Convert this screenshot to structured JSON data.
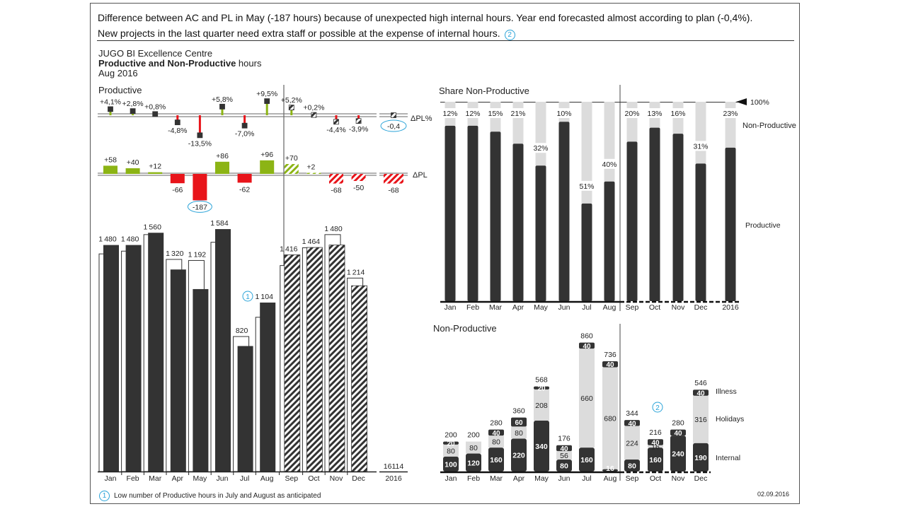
{
  "header": {
    "comment_line1": "Difference between AC and PL in May (-187 hours) because of unexpected high internal hours. Year end forecasted almost according to plan (-0,4%).",
    "comment_line2": "New projects in the last quarter need extra staff or possible at the expense of internal hours.",
    "comment_ref": "2",
    "org": "JUGO BI Excellence Centre",
    "title_bold": "Productive and Non-Productive",
    "title_rest": " hours",
    "period": "Aug 2016"
  },
  "footer": {
    "note_ref": "1",
    "note_text": "Low number of Productive hours in July and August as anticipated",
    "date": "02.09.2016"
  },
  "colors": {
    "actual": "#333333",
    "plan_outline": "#333333",
    "positive": "#8cb415",
    "negative": "#e8141a",
    "light": "#dcdcdc",
    "accent": "#2aa3d8"
  },
  "chart_data": [
    {
      "type": "bar",
      "title": "Productive",
      "categories": [
        "Jan",
        "Feb",
        "Mar",
        "Apr",
        "May",
        "Jun",
        "Jul",
        "Aug",
        "Sep",
        "Oct",
        "Nov",
        "Dec"
      ],
      "forecast_from": "Sep",
      "total_label": "2016",
      "total_value": "16114",
      "series": [
        {
          "name": "AC/FC",
          "values": [
            1480,
            1480,
            1560,
            1320,
            1192,
            1584,
            820,
            1104,
            1416,
            1464,
            1480,
            1214
          ]
        },
        {
          "name": "PL",
          "values": [
            1422,
            1440,
            1548,
            1386,
            1379,
            1498,
            882,
            1008,
            1346,
            1462,
            1548,
            1264
          ]
        }
      ],
      "delta_pl": {
        "label": "ΔPL",
        "values": [
          58,
          40,
          12,
          -66,
          -187,
          86,
          -62,
          96,
          70,
          2,
          -68,
          -50
        ],
        "labels": [
          "+58",
          "+40",
          "+12",
          "-66",
          "-187",
          "+86",
          "-62",
          "+96",
          "+70",
          "+2",
          "-68",
          "-50"
        ],
        "total": -68,
        "total_label": "-68",
        "highlight": "May"
      },
      "delta_pl_percent": {
        "label": "ΔPL%",
        "values": [
          4.1,
          2.8,
          0.8,
          -4.8,
          -13.5,
          5.8,
          -7.0,
          9.5,
          5.2,
          0.2,
          -4.4,
          -3.9
        ],
        "labels": [
          "+4,1%",
          "+2,8%",
          "+0,8%",
          "-4,8%",
          "-13,5%",
          "+5,8%",
          "-7,0%",
          "+9,5%",
          "+5,2%",
          "+0,2%",
          "-4,4%",
          "-3,9%"
        ],
        "total": -0.4,
        "total_label": "-0,4"
      },
      "annotation_ref": "1"
    },
    {
      "type": "bar",
      "title": "Share Non-Productive",
      "categories": [
        "Jan",
        "Feb",
        "Mar",
        "Apr",
        "May",
        "Jun",
        "Jul",
        "Aug",
        "Sep",
        "Oct",
        "Nov",
        "Dec",
        "2016"
      ],
      "forecast_from": "Sep",
      "non_productive_percent": [
        12,
        12,
        15,
        21,
        32,
        10,
        51,
        40,
        20,
        13,
        16,
        31,
        23
      ],
      "labels": [
        "12%",
        "12%",
        "15%",
        "21%",
        "32%",
        "10%",
        "51%",
        "40%",
        "20%",
        "13%",
        "16%",
        "31%",
        "23%"
      ],
      "legend": {
        "top": "Non-Productive",
        "bottom": "Productive"
      },
      "reference_label": "100%"
    },
    {
      "type": "bar",
      "stacked": true,
      "title": "Non-Productive",
      "categories": [
        "Jan",
        "Feb",
        "Mar",
        "Apr",
        "May",
        "Jun",
        "Jul",
        "Aug",
        "Sep",
        "Oct",
        "Nov",
        "Dec"
      ],
      "forecast_from": "Sep",
      "series": [
        {
          "name": "Internal",
          "values": [
            100,
            120,
            160,
            220,
            340,
            80,
            160,
            16,
            80,
            160,
            240,
            190
          ],
          "labels": [
            "100",
            "120",
            "160",
            "220",
            "340",
            "80",
            "160",
            "16",
            "80",
            "160",
            "240",
            "190"
          ]
        },
        {
          "name": "Holidays",
          "values": [
            80,
            80,
            80,
            80,
            208,
            56,
            660,
            680,
            224,
            16,
            0,
            316
          ],
          "labels": [
            "80",
            "80",
            "80",
            "80",
            "208",
            "56",
            "660",
            "680",
            "224",
            "16",
            "",
            "316"
          ]
        },
        {
          "name": "Illness",
          "values": [
            20,
            0,
            40,
            60,
            20,
            40,
            40,
            40,
            40,
            40,
            40,
            40
          ],
          "labels": [
            "20",
            "",
            "40",
            "60",
            "20",
            "40",
            "40",
            "40",
            "40",
            "40",
            "40",
            "40"
          ]
        }
      ],
      "totals": [
        200,
        200,
        280,
        360,
        568,
        176,
        860,
        736,
        344,
        216,
        280,
        546
      ],
      "total_labels": [
        "200",
        "200",
        "280",
        "360",
        "568",
        "176",
        "860",
        "736",
        "344",
        "216",
        "280",
        "546"
      ],
      "annotation_ref": "2"
    }
  ]
}
